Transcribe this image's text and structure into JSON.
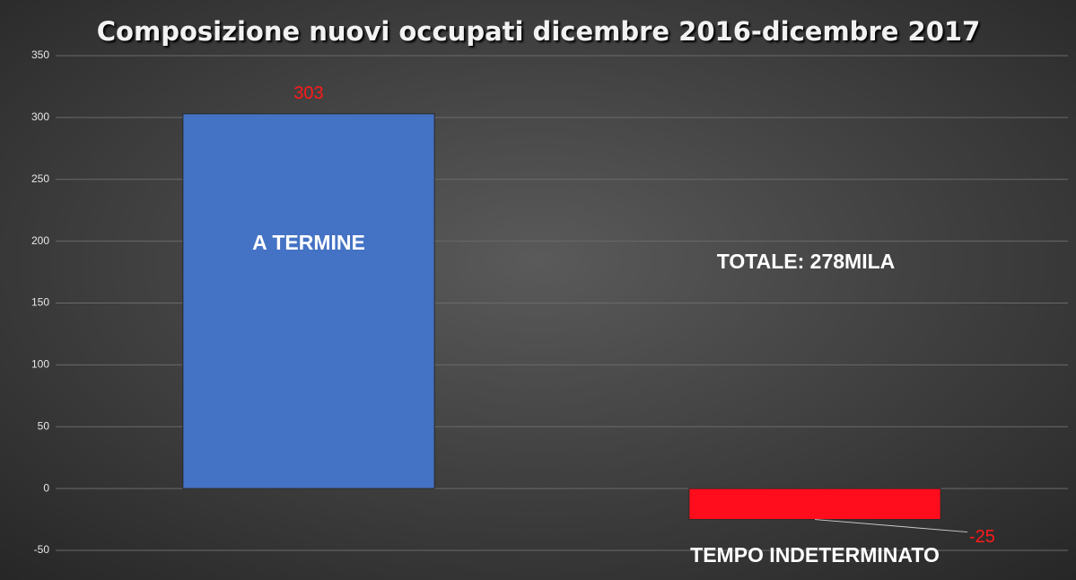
{
  "chart_data": {
    "type": "bar",
    "title": "Composizione nuovi occupati dicembre 2016-dicembre 2017",
    "categories": [
      "A TERMINE",
      "TEMPO INDETERMINATO"
    ],
    "values": [
      303,
      -25
    ],
    "colors": [
      "#4472c4",
      "#ff0d1c"
    ],
    "value_label_color": "#ff1a1a",
    "annotation": "TOTALE: 278MILA",
    "ylim": [
      -50,
      350
    ],
    "yticks": [
      -50,
      0,
      50,
      100,
      150,
      200,
      250,
      300,
      350
    ],
    "grid": true
  }
}
